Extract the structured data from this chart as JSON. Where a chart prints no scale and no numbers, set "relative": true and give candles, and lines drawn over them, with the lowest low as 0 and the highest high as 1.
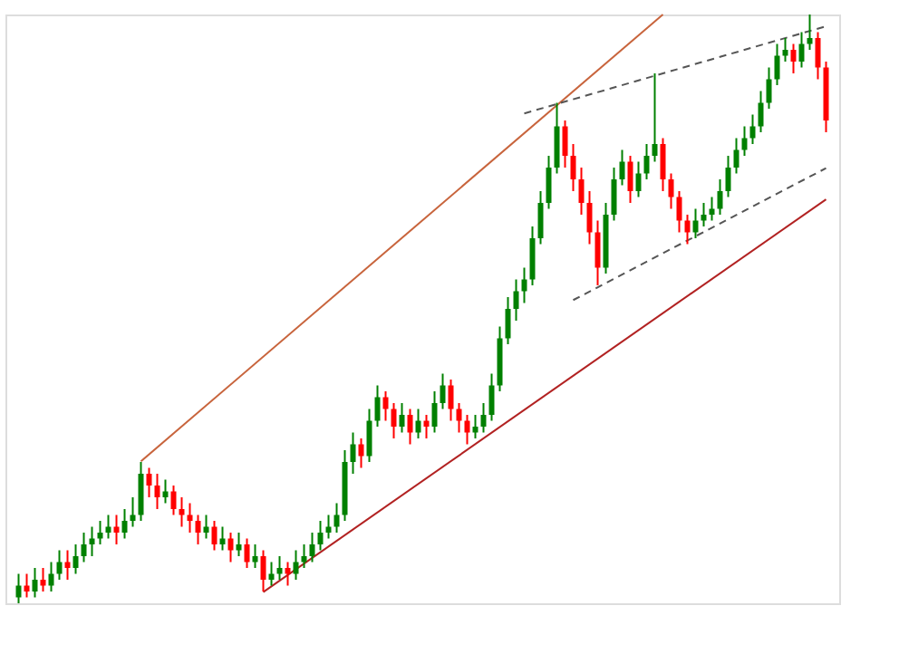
{
  "chart_data": {
    "type": "candlestick",
    "relative": true,
    "categories": [
      null,
      null,
      null,
      null,
      null,
      null,
      null,
      null,
      null,
      null,
      null,
      null,
      null,
      null,
      null,
      null,
      null,
      null,
      null,
      null,
      null,
      null,
      null,
      null,
      null,
      null,
      null,
      null,
      null,
      null,
      null,
      null,
      null,
      null,
      null,
      null,
      null,
      null,
      null,
      null,
      null,
      null,
      null,
      null,
      null,
      null,
      null,
      null,
      null,
      null,
      null,
      null,
      null,
      null,
      null,
      null,
      null,
      null,
      null,
      null,
      null,
      null,
      null,
      null,
      null,
      null,
      null,
      null,
      null,
      null,
      null,
      null,
      null,
      null,
      null,
      null,
      null,
      null,
      null,
      null,
      null,
      null,
      null,
      null,
      null,
      null,
      null,
      null,
      null,
      null,
      null,
      null,
      null,
      null,
      null,
      null,
      null,
      null,
      null,
      null
    ],
    "ohlc": [
      [
        0.01,
        0.05,
        0.0,
        0.03
      ],
      [
        0.03,
        0.05,
        0.01,
        0.02
      ],
      [
        0.02,
        0.06,
        0.01,
        0.04
      ],
      [
        0.04,
        0.06,
        0.02,
        0.03
      ],
      [
        0.03,
        0.07,
        0.02,
        0.05
      ],
      [
        0.05,
        0.09,
        0.04,
        0.07
      ],
      [
        0.07,
        0.09,
        0.04,
        0.06
      ],
      [
        0.06,
        0.1,
        0.05,
        0.08
      ],
      [
        0.08,
        0.12,
        0.07,
        0.1
      ],
      [
        0.1,
        0.13,
        0.08,
        0.11
      ],
      [
        0.11,
        0.14,
        0.1,
        0.12
      ],
      [
        0.12,
        0.15,
        0.11,
        0.13
      ],
      [
        0.13,
        0.15,
        0.1,
        0.12
      ],
      [
        0.12,
        0.16,
        0.11,
        0.14
      ],
      [
        0.14,
        0.18,
        0.13,
        0.15
      ],
      [
        0.15,
        0.24,
        0.14,
        0.22
      ],
      [
        0.22,
        0.23,
        0.18,
        0.2
      ],
      [
        0.2,
        0.22,
        0.16,
        0.18
      ],
      [
        0.18,
        0.21,
        0.17,
        0.19
      ],
      [
        0.19,
        0.2,
        0.15,
        0.16
      ],
      [
        0.16,
        0.18,
        0.13,
        0.15
      ],
      [
        0.15,
        0.17,
        0.12,
        0.14
      ],
      [
        0.14,
        0.15,
        0.1,
        0.12
      ],
      [
        0.12,
        0.15,
        0.11,
        0.13
      ],
      [
        0.13,
        0.14,
        0.09,
        0.1
      ],
      [
        0.1,
        0.13,
        0.09,
        0.11
      ],
      [
        0.11,
        0.12,
        0.07,
        0.09
      ],
      [
        0.09,
        0.12,
        0.08,
        0.1
      ],
      [
        0.1,
        0.11,
        0.06,
        0.07
      ],
      [
        0.07,
        0.1,
        0.06,
        0.08
      ],
      [
        0.08,
        0.09,
        0.02,
        0.04
      ],
      [
        0.04,
        0.07,
        0.03,
        0.05
      ],
      [
        0.05,
        0.08,
        0.04,
        0.06
      ],
      [
        0.06,
        0.07,
        0.03,
        0.05
      ],
      [
        0.05,
        0.09,
        0.04,
        0.07
      ],
      [
        0.07,
        0.1,
        0.06,
        0.08
      ],
      [
        0.08,
        0.12,
        0.07,
        0.1
      ],
      [
        0.1,
        0.14,
        0.09,
        0.12
      ],
      [
        0.12,
        0.15,
        0.11,
        0.13
      ],
      [
        0.13,
        0.17,
        0.12,
        0.15
      ],
      [
        0.15,
        0.26,
        0.14,
        0.24
      ],
      [
        0.24,
        0.29,
        0.22,
        0.27
      ],
      [
        0.27,
        0.28,
        0.23,
        0.25
      ],
      [
        0.25,
        0.33,
        0.24,
        0.31
      ],
      [
        0.31,
        0.37,
        0.3,
        0.35
      ],
      [
        0.35,
        0.36,
        0.31,
        0.33
      ],
      [
        0.33,
        0.34,
        0.28,
        0.3
      ],
      [
        0.3,
        0.34,
        0.29,
        0.32
      ],
      [
        0.32,
        0.33,
        0.27,
        0.29
      ],
      [
        0.29,
        0.33,
        0.28,
        0.31
      ],
      [
        0.31,
        0.32,
        0.28,
        0.3
      ],
      [
        0.3,
        0.36,
        0.29,
        0.34
      ],
      [
        0.34,
        0.39,
        0.33,
        0.37
      ],
      [
        0.37,
        0.38,
        0.31,
        0.33
      ],
      [
        0.33,
        0.34,
        0.29,
        0.31
      ],
      [
        0.31,
        0.32,
        0.27,
        0.29
      ],
      [
        0.29,
        0.32,
        0.28,
        0.3
      ],
      [
        0.3,
        0.34,
        0.29,
        0.32
      ],
      [
        0.32,
        0.39,
        0.31,
        0.37
      ],
      [
        0.37,
        0.47,
        0.36,
        0.45
      ],
      [
        0.45,
        0.52,
        0.44,
        0.5
      ],
      [
        0.5,
        0.55,
        0.48,
        0.53
      ],
      [
        0.53,
        0.57,
        0.51,
        0.55
      ],
      [
        0.55,
        0.64,
        0.54,
        0.62
      ],
      [
        0.62,
        0.7,
        0.61,
        0.68
      ],
      [
        0.68,
        0.76,
        0.67,
        0.74
      ],
      [
        0.74,
        0.85,
        0.73,
        0.81
      ],
      [
        0.81,
        0.82,
        0.74,
        0.76
      ],
      [
        0.76,
        0.78,
        0.7,
        0.72
      ],
      [
        0.72,
        0.74,
        0.66,
        0.68
      ],
      [
        0.68,
        0.7,
        0.61,
        0.63
      ],
      [
        0.63,
        0.65,
        0.54,
        0.57
      ],
      [
        0.57,
        0.68,
        0.56,
        0.66
      ],
      [
        0.66,
        0.74,
        0.65,
        0.72
      ],
      [
        0.72,
        0.77,
        0.71,
        0.75
      ],
      [
        0.75,
        0.76,
        0.68,
        0.7
      ],
      [
        0.7,
        0.75,
        0.69,
        0.73
      ],
      [
        0.73,
        0.78,
        0.72,
        0.76
      ],
      [
        0.76,
        0.9,
        0.75,
        0.78
      ],
      [
        0.78,
        0.79,
        0.7,
        0.72
      ],
      [
        0.72,
        0.73,
        0.67,
        0.69
      ],
      [
        0.69,
        0.7,
        0.63,
        0.65
      ],
      [
        0.65,
        0.66,
        0.61,
        0.63
      ],
      [
        0.63,
        0.67,
        0.62,
        0.65
      ],
      [
        0.65,
        0.68,
        0.64,
        0.66
      ],
      [
        0.66,
        0.69,
        0.65,
        0.67
      ],
      [
        0.67,
        0.72,
        0.66,
        0.7
      ],
      [
        0.7,
        0.76,
        0.69,
        0.74
      ],
      [
        0.74,
        0.79,
        0.73,
        0.77
      ],
      [
        0.77,
        0.81,
        0.76,
        0.79
      ],
      [
        0.79,
        0.83,
        0.78,
        0.81
      ],
      [
        0.81,
        0.87,
        0.8,
        0.85
      ],
      [
        0.85,
        0.91,
        0.84,
        0.89
      ],
      [
        0.89,
        0.95,
        0.88,
        0.93
      ],
      [
        0.93,
        0.96,
        0.92,
        0.94
      ],
      [
        0.94,
        0.95,
        0.9,
        0.92
      ],
      [
        0.92,
        0.97,
        0.91,
        0.95
      ],
      [
        0.95,
        1.0,
        0.94,
        0.96
      ],
      [
        0.96,
        0.97,
        0.89,
        0.91
      ],
      [
        0.91,
        0.92,
        0.8,
        0.82
      ]
    ],
    "colors": [
      "#008000",
      "#ff0000",
      "#008000",
      "#ff0000",
      "#008000",
      "#008000",
      "#ff0000",
      "#008000",
      "#008000",
      "#008000",
      "#008000",
      "#008000",
      "#ff0000",
      "#008000",
      "#008000",
      "#008000",
      "#ff0000",
      "#ff0000",
      "#008000",
      "#ff0000",
      "#ff0000",
      "#ff0000",
      "#ff0000",
      "#008000",
      "#ff0000",
      "#008000",
      "#ff0000",
      "#008000",
      "#ff0000",
      "#008000",
      "#ff0000",
      "#008000",
      "#008000",
      "#ff0000",
      "#008000",
      "#008000",
      "#008000",
      "#008000",
      "#008000",
      "#008000",
      "#008000",
      "#008000",
      "#ff0000",
      "#008000",
      "#008000",
      "#ff0000",
      "#ff0000",
      "#008000",
      "#ff0000",
      "#008000",
      "#ff0000",
      "#008000",
      "#008000",
      "#ff0000",
      "#ff0000",
      "#ff0000",
      "#008000",
      "#008000",
      "#008000",
      "#008000",
      "#008000",
      "#008000",
      "#008000",
      "#008000",
      "#008000",
      "#008000",
      "#008000",
      "#ff0000",
      "#ff0000",
      "#ff0000",
      "#ff0000",
      "#ff0000",
      "#008000",
      "#008000",
      "#008000",
      "#ff0000",
      "#008000",
      "#008000",
      "#008000",
      "#ff0000",
      "#ff0000",
      "#ff0000",
      "#ff0000",
      "#008000",
      "#008000",
      "#008000",
      "#008000",
      "#008000",
      "#008000",
      "#008000",
      "#008000",
      "#008000",
      "#008000",
      "#008000",
      "#008000",
      "#ff0000",
      "#008000",
      "#008000",
      "#ff0000",
      "#ff0000"
    ],
    "series": [
      {
        "type": "line",
        "color": "#c8643c",
        "line_style": "solid",
        "values": [
          null,
          null,
          null,
          null,
          null,
          null,
          null,
          null,
          null,
          null,
          null,
          null,
          null,
          null,
          null,
          0.241,
          null,
          null,
          null,
          null,
          null,
          null,
          null,
          null,
          null,
          null,
          null,
          null,
          null,
          null,
          null,
          null,
          null,
          null,
          null,
          null,
          null,
          null,
          null,
          null,
          null,
          null,
          null,
          null,
          null,
          null,
          null,
          null,
          null,
          null,
          null,
          null,
          null,
          null,
          null,
          null,
          null,
          null,
          null,
          null,
          null,
          null,
          null,
          null,
          null,
          null,
          null,
          null,
          null,
          null,
          null,
          null,
          null,
          null,
          null,
          null,
          null,
          null,
          null,
          1.0,
          null,
          null,
          null,
          null,
          null,
          null,
          null,
          null,
          null,
          null,
          null,
          null,
          null,
          null,
          null,
          null,
          null,
          null,
          null,
          null
        ]
      },
      {
        "type": "line",
        "color": "#b22222",
        "line_style": "solid",
        "values": [
          null,
          null,
          null,
          null,
          null,
          null,
          null,
          null,
          null,
          null,
          null,
          null,
          null,
          null,
          null,
          null,
          null,
          null,
          null,
          null,
          null,
          null,
          null,
          null,
          null,
          null,
          null,
          null,
          null,
          null,
          0.019,
          null,
          null,
          null,
          null,
          null,
          null,
          null,
          null,
          null,
          null,
          null,
          null,
          null,
          null,
          null,
          null,
          null,
          null,
          null,
          null,
          null,
          null,
          null,
          null,
          null,
          null,
          null,
          null,
          null,
          null,
          null,
          null,
          null,
          null,
          null,
          null,
          null,
          null,
          null,
          null,
          null,
          null,
          null,
          null,
          null,
          null,
          null,
          null,
          null,
          null,
          null,
          null,
          null,
          null,
          null,
          null,
          null,
          null,
          null,
          null,
          null,
          null,
          null,
          null,
          null,
          null,
          null,
          null,
          0.686
        ]
      },
      {
        "type": "line",
        "color": "#555555",
        "line_style": "dashed",
        "values": [
          null,
          null,
          null,
          null,
          null,
          null,
          null,
          null,
          null,
          null,
          null,
          null,
          null,
          null,
          null,
          null,
          null,
          null,
          null,
          null,
          null,
          null,
          null,
          null,
          null,
          null,
          null,
          null,
          null,
          null,
          null,
          null,
          null,
          null,
          null,
          null,
          null,
          null,
          null,
          null,
          null,
          null,
          null,
          null,
          null,
          null,
          null,
          null,
          null,
          null,
          null,
          null,
          null,
          null,
          null,
          null,
          null,
          null,
          null,
          null,
          null,
          null,
          0.832,
          null,
          null,
          null,
          null,
          null,
          null,
          null,
          null,
          null,
          null,
          null,
          null,
          null,
          null,
          null,
          null,
          null,
          null,
          null,
          null,
          null,
          null,
          null,
          null,
          null,
          null,
          null,
          null,
          null,
          null,
          null,
          null,
          null,
          null,
          null,
          null,
          0.98
        ]
      },
      {
        "type": "line",
        "color": "#555555",
        "line_style": "dashed",
        "values": [
          null,
          null,
          null,
          null,
          null,
          null,
          null,
          null,
          null,
          null,
          null,
          null,
          null,
          null,
          null,
          null,
          null,
          null,
          null,
          null,
          null,
          null,
          null,
          null,
          null,
          null,
          null,
          null,
          null,
          null,
          null,
          null,
          null,
          null,
          null,
          null,
          null,
          null,
          null,
          null,
          null,
          null,
          null,
          null,
          null,
          null,
          null,
          null,
          null,
          null,
          null,
          null,
          null,
          null,
          null,
          null,
          null,
          null,
          null,
          null,
          null,
          null,
          null,
          null,
          null,
          null,
          null,
          null,
          0.515,
          null,
          null,
          null,
          null,
          null,
          null,
          null,
          null,
          null,
          null,
          null,
          null,
          null,
          null,
          null,
          null,
          null,
          null,
          null,
          null,
          null,
          null,
          null,
          null,
          null,
          null,
          null,
          null,
          null,
          null,
          0.739
        ]
      }
    ]
  }
}
